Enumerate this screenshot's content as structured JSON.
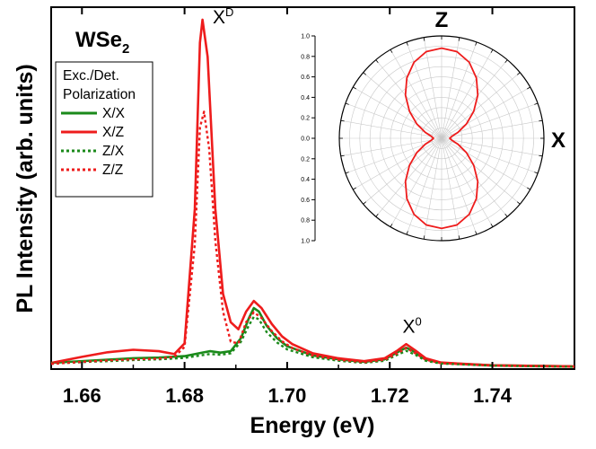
{
  "sample_label": {
    "base": "WSe",
    "subscript": "2"
  },
  "chart_data": [
    {
      "type": "line",
      "xlabel": "Energy (eV)",
      "ylabel": "PL Intensity (arb. units)",
      "xlim": [
        1.654,
        1.756
      ],
      "ylim": [
        0,
        1.0
      ],
      "y_ticks_shown": false,
      "grid": false,
      "x_ticks": [
        "1.66",
        "1.68",
        "1.70",
        "1.72",
        "1.74"
      ],
      "legend": {
        "title_lines": [
          "Exc./Det.",
          "Polarization"
        ],
        "placement": "top-left"
      },
      "annotations": [
        {
          "id": "xd",
          "base": "X",
          "sup": "D",
          "x": 1.6855,
          "y": 0.975
        },
        {
          "id": "x0",
          "base": "X",
          "sup": "0",
          "x": 1.7225,
          "y": 0.1
        }
      ],
      "series": [
        {
          "name": "X/X",
          "color": "#1a8a1a",
          "style": "solid",
          "points": [
            [
              1.654,
              0.015
            ],
            [
              1.66,
              0.02
            ],
            [
              1.665,
              0.024
            ],
            [
              1.67,
              0.028
            ],
            [
              1.675,
              0.03
            ],
            [
              1.68,
              0.034
            ],
            [
              1.6835,
              0.044
            ],
            [
              1.685,
              0.048
            ],
            [
              1.687,
              0.044
            ],
            [
              1.689,
              0.048
            ],
            [
              1.691,
              0.085
            ],
            [
              1.6925,
              0.14
            ],
            [
              1.6935,
              0.17
            ],
            [
              1.6945,
              0.16
            ],
            [
              1.696,
              0.12
            ],
            [
              1.698,
              0.085
            ],
            [
              1.7,
              0.062
            ],
            [
              1.705,
              0.036
            ],
            [
              1.71,
              0.025
            ],
            [
              1.715,
              0.018
            ],
            [
              1.719,
              0.025
            ],
            [
              1.7215,
              0.045
            ],
            [
              1.7232,
              0.058
            ],
            [
              1.725,
              0.045
            ],
            [
              1.727,
              0.025
            ],
            [
              1.73,
              0.015
            ],
            [
              1.74,
              0.008
            ],
            [
              1.756,
              0.005
            ]
          ]
        },
        {
          "name": "X/Z",
          "color": "#ee1c1c",
          "style": "solid",
          "points": [
            [
              1.654,
              0.015
            ],
            [
              1.66,
              0.032
            ],
            [
              1.665,
              0.045
            ],
            [
              1.67,
              0.052
            ],
            [
              1.675,
              0.048
            ],
            [
              1.678,
              0.04
            ],
            [
              1.68,
              0.07
            ],
            [
              1.682,
              0.45
            ],
            [
              1.683,
              0.92
            ],
            [
              1.6835,
              0.985
            ],
            [
              1.6845,
              0.88
            ],
            [
              1.686,
              0.45
            ],
            [
              1.6875,
              0.21
            ],
            [
              1.689,
              0.13
            ],
            [
              1.6905,
              0.11
            ],
            [
              1.692,
              0.16
            ],
            [
              1.6935,
              0.19
            ],
            [
              1.695,
              0.17
            ],
            [
              1.697,
              0.125
            ],
            [
              1.699,
              0.09
            ],
            [
              1.701,
              0.068
            ],
            [
              1.705,
              0.042
            ],
            [
              1.71,
              0.028
            ],
            [
              1.715,
              0.02
            ],
            [
              1.719,
              0.028
            ],
            [
              1.7215,
              0.05
            ],
            [
              1.7232,
              0.068
            ],
            [
              1.725,
              0.05
            ],
            [
              1.727,
              0.028
            ],
            [
              1.73,
              0.016
            ],
            [
              1.74,
              0.008
            ],
            [
              1.756,
              0.005
            ]
          ]
        },
        {
          "name": "Z/X",
          "color": "#1a8a1a",
          "style": "dotted",
          "points": [
            [
              1.654,
              0.013
            ],
            [
              1.66,
              0.017
            ],
            [
              1.665,
              0.02
            ],
            [
              1.67,
              0.023
            ],
            [
              1.675,
              0.025
            ],
            [
              1.68,
              0.029
            ],
            [
              1.6835,
              0.037
            ],
            [
              1.685,
              0.04
            ],
            [
              1.687,
              0.038
            ],
            [
              1.689,
              0.042
            ],
            [
              1.691,
              0.075
            ],
            [
              1.6925,
              0.12
            ],
            [
              1.6935,
              0.145
            ],
            [
              1.6945,
              0.138
            ],
            [
              1.696,
              0.102
            ],
            [
              1.698,
              0.073
            ],
            [
              1.7,
              0.053
            ],
            [
              1.705,
              0.031
            ],
            [
              1.71,
              0.021
            ],
            [
              1.715,
              0.015
            ],
            [
              1.719,
              0.021
            ],
            [
              1.7215,
              0.038
            ],
            [
              1.7232,
              0.049
            ],
            [
              1.725,
              0.038
            ],
            [
              1.727,
              0.021
            ],
            [
              1.73,
              0.013
            ],
            [
              1.74,
              0.007
            ],
            [
              1.756,
              0.004
            ]
          ]
        },
        {
          "name": "Z/Z",
          "color": "#ee1c1c",
          "style": "dotted",
          "points": [
            [
              1.654,
              0.012
            ],
            [
              1.66,
              0.018
            ],
            [
              1.665,
              0.022
            ],
            [
              1.67,
              0.025
            ],
            [
              1.675,
              0.027
            ],
            [
              1.678,
              0.032
            ],
            [
              1.68,
              0.06
            ],
            [
              1.682,
              0.35
            ],
            [
              1.683,
              0.68
            ],
            [
              1.6838,
              0.725
            ],
            [
              1.6848,
              0.62
            ],
            [
              1.686,
              0.36
            ],
            [
              1.6875,
              0.16
            ],
            [
              1.689,
              0.075
            ],
            [
              1.6905,
              0.07
            ],
            [
              1.692,
              0.13
            ],
            [
              1.6935,
              0.158
            ],
            [
              1.695,
              0.142
            ],
            [
              1.697,
              0.105
            ],
            [
              1.699,
              0.076
            ],
            [
              1.701,
              0.057
            ],
            [
              1.705,
              0.036
            ],
            [
              1.71,
              0.024
            ],
            [
              1.715,
              0.017
            ],
            [
              1.719,
              0.024
            ],
            [
              1.7215,
              0.042
            ],
            [
              1.7232,
              0.057
            ],
            [
              1.725,
              0.042
            ],
            [
              1.727,
              0.024
            ],
            [
              1.73,
              0.014
            ],
            [
              1.74,
              0.007
            ],
            [
              1.756,
              0.004
            ]
          ]
        }
      ]
    },
    {
      "type": "polar",
      "axis_labels": {
        "top": "Z",
        "right": "X"
      },
      "radial_ticks": [
        "1.0",
        "0.8",
        "0.6",
        "0.4",
        "0.2",
        "0.0",
        "0.2",
        "0.4",
        "0.6",
        "0.8",
        "1.0"
      ],
      "rlim": [
        0,
        1.0
      ],
      "grid": true,
      "series": [
        {
          "color": "#ee1c1c",
          "description_law": "cos-squared lobes along Z",
          "points": [
            [
              0,
              0.88
            ],
            [
              10,
              0.86
            ],
            [
              20,
              0.79
            ],
            [
              30,
              0.68
            ],
            [
              40,
              0.55
            ],
            [
              50,
              0.41
            ],
            [
              60,
              0.28
            ],
            [
              70,
              0.17
            ],
            [
              80,
              0.1
            ],
            [
              90,
              0.08
            ],
            [
              100,
              0.1
            ],
            [
              110,
              0.17
            ],
            [
              120,
              0.28
            ],
            [
              130,
              0.41
            ],
            [
              140,
              0.55
            ],
            [
              150,
              0.68
            ],
            [
              160,
              0.79
            ],
            [
              170,
              0.86
            ],
            [
              180,
              0.88
            ],
            [
              190,
              0.86
            ],
            [
              200,
              0.79
            ],
            [
              210,
              0.68
            ],
            [
              220,
              0.55
            ],
            [
              230,
              0.41
            ],
            [
              240,
              0.28
            ],
            [
              250,
              0.17
            ],
            [
              260,
              0.1
            ],
            [
              270,
              0.08
            ],
            [
              280,
              0.1
            ],
            [
              290,
              0.17
            ],
            [
              300,
              0.28
            ],
            [
              310,
              0.41
            ],
            [
              320,
              0.55
            ],
            [
              330,
              0.68
            ],
            [
              340,
              0.79
            ],
            [
              350,
              0.86
            ]
          ]
        }
      ]
    }
  ]
}
